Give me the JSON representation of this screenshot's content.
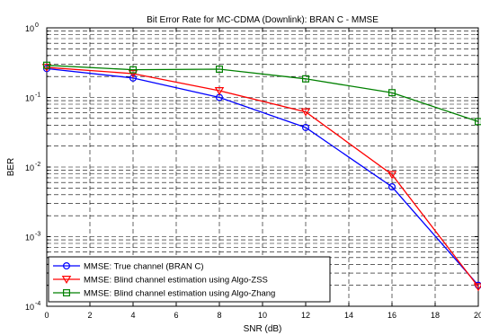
{
  "chart_data": {
    "type": "line",
    "title": "Bit Error Rate for MC-CDMA (Downlink): BRAN C - MMSE",
    "xlabel": "SNR (dB)",
    "ylabel": "BER",
    "xscale": "linear",
    "yscale": "log",
    "xlim": [
      0,
      20
    ],
    "ylim": [
      0.0001,
      1
    ],
    "x_ticks": [
      0,
      2,
      4,
      6,
      8,
      10,
      12,
      14,
      16,
      18,
      20
    ],
    "x_tick_labels": [
      "0",
      "2",
      "4",
      "6",
      "8",
      "10",
      "12",
      "14",
      "16",
      "18",
      "20"
    ],
    "y_tick_labels": [
      {
        "base": "10",
        "exp": "-4",
        "value": 0.0001
      },
      {
        "base": "10",
        "exp": "-3",
        "value": 0.001
      },
      {
        "base": "10",
        "exp": "-2",
        "value": 0.01
      },
      {
        "base": "10",
        "exp": "-1",
        "value": 0.1
      },
      {
        "base": "10",
        "exp": "0",
        "value": 1
      }
    ],
    "grid": true,
    "legend_position": "bottom-left",
    "x": [
      0,
      4,
      8,
      12,
      16,
      20
    ],
    "series": [
      {
        "name": "MMSE: True channel (BRAN C)",
        "color": "#0000ff",
        "marker": "circle",
        "values": [
          0.26,
          0.19,
          0.1,
          0.037,
          0.0052,
          0.0002
        ]
      },
      {
        "name": "MMSE: Blind channel estimation using Algo-ZSS",
        "color": "#ff0000",
        "marker": "triangle-down",
        "values": [
          0.27,
          0.22,
          0.125,
          0.062,
          0.0078,
          0.00019
        ]
      },
      {
        "name": "MMSE: Blind channel estimation using Algo-Zhang",
        "color": "#008000",
        "marker": "square",
        "values": [
          0.29,
          0.25,
          0.255,
          0.185,
          0.117,
          0.045
        ]
      }
    ]
  }
}
